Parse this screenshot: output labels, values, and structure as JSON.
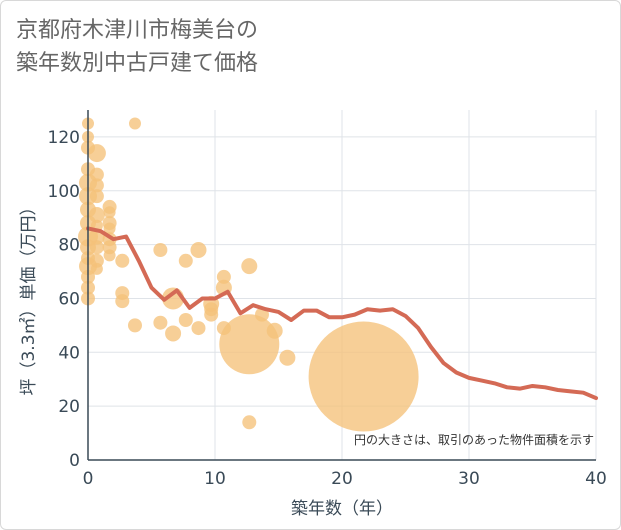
{
  "title_lines": [
    "京都府木津川市梅美台の",
    "築年数別中古戸建て価格"
  ],
  "chart_data": {
    "type": "scatter",
    "title": "京都府木津川市梅美台の築年数別中古戸建て価格",
    "xlabel": "築年数（年）",
    "ylabel": "坪（3.3㎡）単価（万円）",
    "xlim": [
      0,
      40
    ],
    "ylim": [
      0,
      130
    ],
    "xticks": [
      "0",
      "10",
      "20",
      "30",
      "40"
    ],
    "yticks": [
      "0",
      "20",
      "40",
      "60",
      "80",
      "100",
      "120"
    ],
    "note": "円の大きさは、取引のあった物件面積を示す",
    "grid": true,
    "colors": {
      "bubble": "#f5c27a",
      "line": "#d46a55",
      "grid": "#dfe3e8"
    },
    "bubbles": [
      {
        "x": 0,
        "y": 125,
        "s": 6
      },
      {
        "x": 0,
        "y": 120,
        "s": 6
      },
      {
        "x": 0,
        "y": 116,
        "s": 7
      },
      {
        "x": 0,
        "y": 108,
        "s": 7
      },
      {
        "x": 0,
        "y": 103,
        "s": 9
      },
      {
        "x": 0,
        "y": 98,
        "s": 9
      },
      {
        "x": 0,
        "y": 93,
        "s": 8
      },
      {
        "x": 0,
        "y": 88,
        "s": 8
      },
      {
        "x": 0,
        "y": 83,
        "s": 10
      },
      {
        "x": 0,
        "y": 79,
        "s": 8
      },
      {
        "x": 0,
        "y": 75,
        "s": 7
      },
      {
        "x": 0,
        "y": 72,
        "s": 9
      },
      {
        "x": 0,
        "y": 68,
        "s": 7
      },
      {
        "x": 0,
        "y": 64,
        "s": 7
      },
      {
        "x": 0,
        "y": 60,
        "s": 7
      },
      {
        "x": 0.7,
        "y": 114,
        "s": 9
      },
      {
        "x": 0.7,
        "y": 106,
        "s": 7
      },
      {
        "x": 0.7,
        "y": 102,
        "s": 7
      },
      {
        "x": 0.7,
        "y": 98,
        "s": 7
      },
      {
        "x": 0.7,
        "y": 91,
        "s": 8
      },
      {
        "x": 0.7,
        "y": 87,
        "s": 6
      },
      {
        "x": 0.7,
        "y": 83,
        "s": 8
      },
      {
        "x": 0.7,
        "y": 79,
        "s": 7
      },
      {
        "x": 0.7,
        "y": 74,
        "s": 7
      },
      {
        "x": 0.7,
        "y": 71,
        "s": 6
      },
      {
        "x": 1.7,
        "y": 94,
        "s": 7
      },
      {
        "x": 1.7,
        "y": 92,
        "s": 6
      },
      {
        "x": 1.7,
        "y": 88,
        "s": 7
      },
      {
        "x": 1.7,
        "y": 86,
        "s": 6
      },
      {
        "x": 1.7,
        "y": 82,
        "s": 7
      },
      {
        "x": 1.7,
        "y": 79,
        "s": 7
      },
      {
        "x": 1.7,
        "y": 76,
        "s": 6
      },
      {
        "x": 2.7,
        "y": 74,
        "s": 7
      },
      {
        "x": 2.7,
        "y": 62,
        "s": 7
      },
      {
        "x": 2.7,
        "y": 59,
        "s": 7
      },
      {
        "x": 3.7,
        "y": 125,
        "s": 6
      },
      {
        "x": 3.7,
        "y": 50,
        "s": 7
      },
      {
        "x": 5.7,
        "y": 78,
        "s": 7
      },
      {
        "x": 5.7,
        "y": 51,
        "s": 7
      },
      {
        "x": 6.7,
        "y": 60,
        "s": 11
      },
      {
        "x": 6.7,
        "y": 47,
        "s": 8
      },
      {
        "x": 7.7,
        "y": 74,
        "s": 7
      },
      {
        "x": 7.7,
        "y": 52,
        "s": 7
      },
      {
        "x": 8.7,
        "y": 78,
        "s": 8
      },
      {
        "x": 8.7,
        "y": 49,
        "s": 7
      },
      {
        "x": 9.7,
        "y": 58,
        "s": 8
      },
      {
        "x": 9.7,
        "y": 56,
        "s": 7
      },
      {
        "x": 9.7,
        "y": 54,
        "s": 7
      },
      {
        "x": 10.7,
        "y": 68,
        "s": 7
      },
      {
        "x": 10.7,
        "y": 64,
        "s": 8
      },
      {
        "x": 10.7,
        "y": 49,
        "s": 7
      },
      {
        "x": 12.7,
        "y": 72,
        "s": 8
      },
      {
        "x": 12.7,
        "y": 43,
        "s": 30
      },
      {
        "x": 12.7,
        "y": 14,
        "s": 7
      },
      {
        "x": 13.7,
        "y": 54,
        "s": 7
      },
      {
        "x": 14.7,
        "y": 48,
        "s": 8
      },
      {
        "x": 15.7,
        "y": 38,
        "s": 8
      },
      {
        "x": 21.7,
        "y": 31,
        "s": 55
      }
    ],
    "line": {
      "x": [
        0,
        1,
        2,
        3,
        4,
        5,
        6,
        7,
        8,
        9,
        10,
        11,
        12,
        13,
        14,
        15,
        16,
        17,
        18,
        19,
        20,
        21,
        22,
        23,
        24,
        25,
        26,
        27,
        28,
        29,
        30,
        31,
        32,
        33,
        34,
        35,
        36,
        37,
        38,
        39,
        40
      ],
      "y": [
        86,
        85,
        82,
        83,
        74,
        64,
        59.5,
        63,
        56.5,
        60,
        60,
        62.5,
        54.5,
        57.5,
        56,
        55,
        52,
        55.5,
        55.5,
        53,
        53,
        54,
        56,
        55.5,
        56,
        53.5,
        49,
        42,
        36,
        32.5,
        30.5,
        29.5,
        28.5,
        27,
        26.5,
        27.5,
        27,
        26,
        25.5,
        25,
        23
      ]
    }
  }
}
